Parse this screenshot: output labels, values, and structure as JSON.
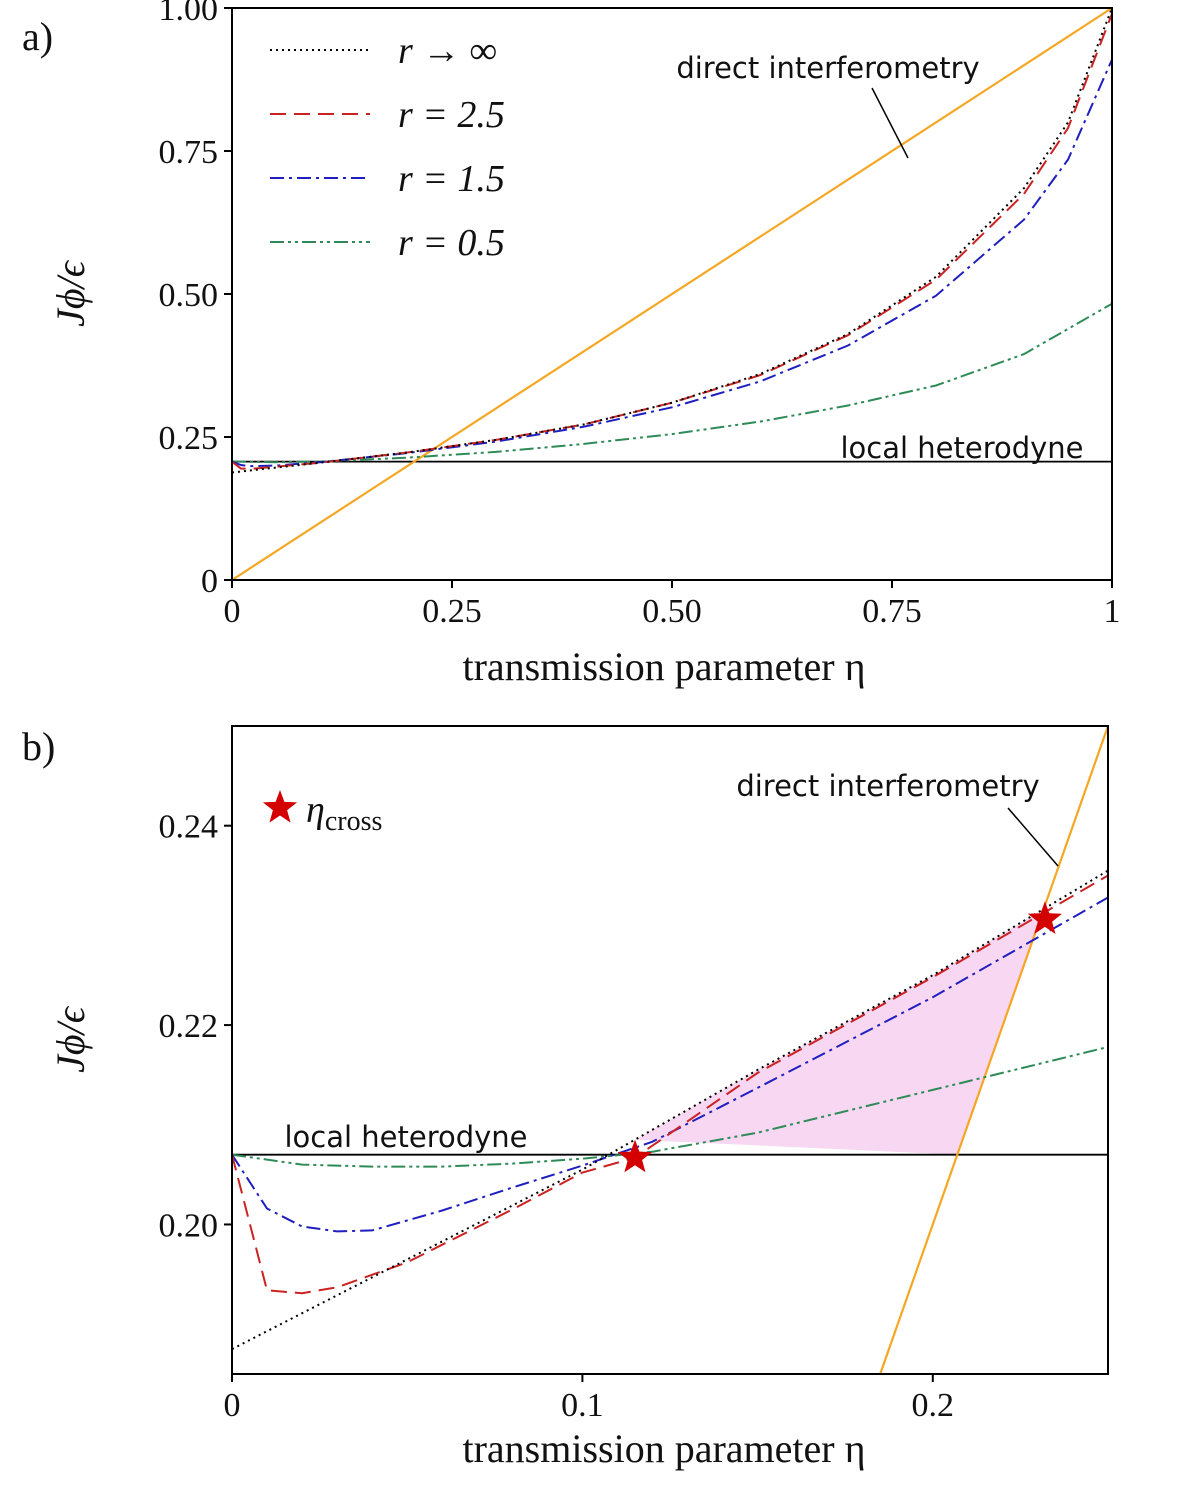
{
  "figure": {
    "panel_a_label": "a)",
    "panel_b_label": "b)"
  },
  "legend": {
    "entries": [
      {
        "label": "r → ∞",
        "color": "#000000",
        "dash": "dotted"
      },
      {
        "label": "r = 2.5",
        "color": "#d62728",
        "dash": "dashed"
      },
      {
        "label": "r = 1.5",
        "color": "#1f1fbf",
        "dash": "dashdot"
      },
      {
        "label": "r = 0.5",
        "color": "#2e8b57",
        "dash": "dashdotdot"
      }
    ],
    "cross_label": "η",
    "cross_subscript": "cross",
    "cross_color": "#d40000"
  },
  "chart_data": [
    {
      "type": "line",
      "panel": "a",
      "xlabel": "transmission parameter η",
      "ylabel": "Jϕ/ϵ",
      "xlim": [
        0,
        1
      ],
      "ylim": [
        0,
        1
      ],
      "xticks": [
        0,
        0.25,
        0.5,
        0.75,
        1
      ],
      "xtick_labels": [
        "0",
        "0.25",
        "0.50",
        "0.75",
        "1"
      ],
      "yticks": [
        0,
        0.25,
        0.5,
        0.75,
        1
      ],
      "ytick_labels": [
        "0",
        "0.25",
        "0.50",
        "0.75",
        "1.00"
      ],
      "annotations": [
        "direct interferometry",
        "local heterodyne"
      ],
      "series": [
        {
          "name": "r → ∞",
          "x": [
            0,
            0.1,
            0.2,
            0.3,
            0.4,
            0.5,
            0.6,
            0.7,
            0.8,
            0.9,
            0.95,
            1.0
          ],
          "y": [
            0.188,
            0.205,
            0.223,
            0.245,
            0.272,
            0.31,
            0.36,
            0.43,
            0.53,
            0.685,
            0.8,
            1.0
          ]
        },
        {
          "name": "r = 2.5",
          "x": [
            0,
            0.01,
            0.02,
            0.05,
            0.1,
            0.2,
            0.3,
            0.4,
            0.5,
            0.6,
            0.7,
            0.8,
            0.9,
            0.95,
            1.0
          ],
          "y": [
            0.207,
            0.195,
            0.194,
            0.198,
            0.205,
            0.223,
            0.245,
            0.272,
            0.31,
            0.358,
            0.428,
            0.525,
            0.675,
            0.79,
            0.99
          ]
        },
        {
          "name": "r = 1.5",
          "x": [
            0,
            0.01,
            0.02,
            0.05,
            0.1,
            0.2,
            0.3,
            0.4,
            0.5,
            0.6,
            0.7,
            0.8,
            0.9,
            0.95,
            1.0
          ],
          "y": [
            0.207,
            0.201,
            0.199,
            0.2,
            0.206,
            0.222,
            0.242,
            0.268,
            0.302,
            0.347,
            0.41,
            0.497,
            0.63,
            0.735,
            0.91
          ]
        },
        {
          "name": "r = 0.5",
          "x": [
            0,
            0.05,
            0.1,
            0.2,
            0.3,
            0.4,
            0.5,
            0.6,
            0.7,
            0.8,
            0.9,
            1.0
          ],
          "y": [
            0.207,
            0.206,
            0.207,
            0.214,
            0.224,
            0.238,
            0.255,
            0.277,
            0.305,
            0.34,
            0.395,
            0.483
          ]
        },
        {
          "name": "direct interferometry",
          "x": [
            0,
            1
          ],
          "y": [
            0,
            1
          ]
        },
        {
          "name": "local heterodyne",
          "x": [
            0,
            1
          ],
          "y": [
            0.207,
            0.207
          ]
        }
      ]
    },
    {
      "type": "line",
      "panel": "b",
      "xlabel": "transmission parameter η",
      "ylabel": "Jϕ/ϵ",
      "xlim": [
        0,
        0.25
      ],
      "ylim": [
        0.185,
        0.25
      ],
      "xticks": [
        0,
        0.1,
        0.2
      ],
      "xtick_labels": [
        "0",
        "0.1",
        "0.2"
      ],
      "yticks": [
        0.2,
        0.22,
        0.24
      ],
      "ytick_labels": [
        "0.20",
        "0.22",
        "0.24"
      ],
      "annotations": [
        "direct interferometry",
        "local heterodyne"
      ],
      "cross_points": [
        {
          "x": 0.115,
          "y": 0.2067
        },
        {
          "x": 0.232,
          "y": 0.2306
        }
      ],
      "series": [
        {
          "name": "r → ∞",
          "x": [
            0,
            0.05,
            0.1,
            0.15,
            0.2,
            0.25
          ],
          "y": [
            0.1875,
            0.1965,
            0.2055,
            0.2155,
            0.225,
            0.2355
          ]
        },
        {
          "name": "r = 2.5",
          "x": [
            0,
            0.01,
            0.02,
            0.03,
            0.05,
            0.08,
            0.1,
            0.115,
            0.15,
            0.2,
            0.25
          ],
          "y": [
            0.207,
            0.1934,
            0.1931,
            0.1937,
            0.1962,
            0.2015,
            0.2052,
            0.2067,
            0.2152,
            0.2248,
            0.235
          ]
        },
        {
          "name": "r = 1.5",
          "x": [
            0,
            0.01,
            0.02,
            0.03,
            0.04,
            0.06,
            0.08,
            0.1,
            0.12,
            0.15,
            0.2,
            0.25
          ],
          "y": [
            0.207,
            0.2016,
            0.1998,
            0.1993,
            0.1994,
            0.2014,
            0.2037,
            0.2059,
            0.2083,
            0.2137,
            0.2228,
            0.2328
          ]
        },
        {
          "name": "r = 0.5",
          "x": [
            0,
            0.02,
            0.04,
            0.06,
            0.08,
            0.1,
            0.12,
            0.15,
            0.2,
            0.25
          ],
          "y": [
            0.207,
            0.206,
            0.2058,
            0.2058,
            0.2061,
            0.2066,
            0.2073,
            0.2092,
            0.2135,
            0.2178
          ]
        },
        {
          "name": "direct interferometry",
          "x": [
            0.185,
            0.25
          ],
          "y": [
            0.185,
            0.25
          ]
        },
        {
          "name": "local heterodyne",
          "x": [
            0,
            0.25
          ],
          "y": [
            0.207,
            0.207
          ]
        }
      ]
    }
  ]
}
